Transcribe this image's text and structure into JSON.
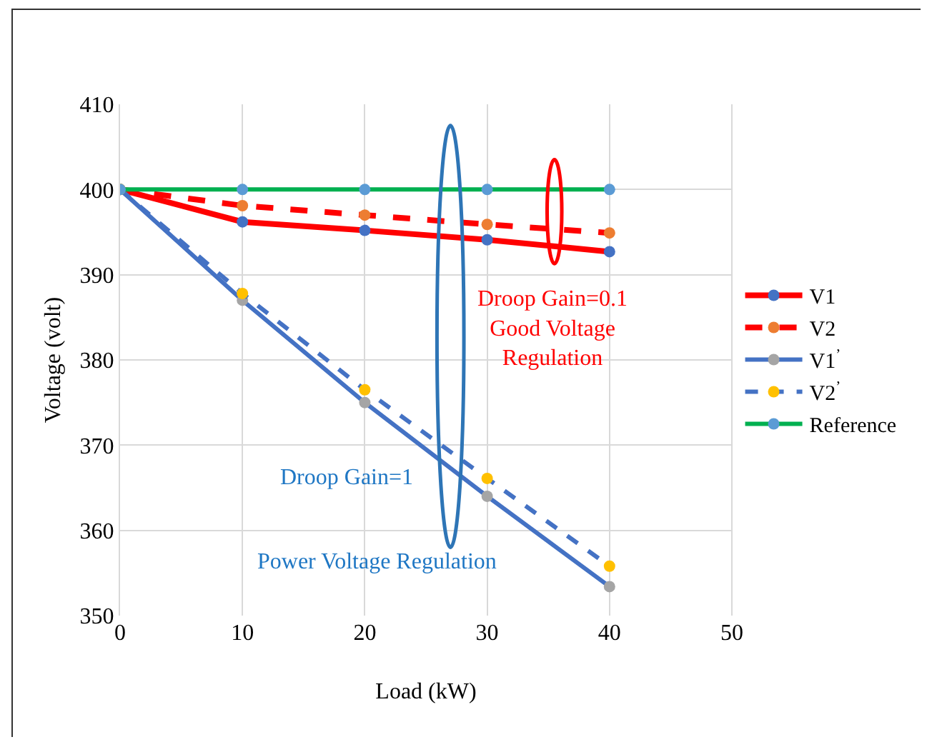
{
  "chart_data": {
    "type": "line",
    "xlabel": "Load (kW)",
    "ylabel": "Voltage (volt)",
    "x": [
      0,
      10,
      20,
      30,
      40
    ],
    "series": [
      {
        "name": "V1",
        "color": "#ff0000",
        "colors": [
          "#4472c4",
          "#4472c4",
          "#4472c4",
          "#4472c4",
          "#4472c4"
        ],
        "line_style": "solid",
        "values": [
          400,
          396.2,
          395.2,
          394.1,
          392.7
        ]
      },
      {
        "name": "V2",
        "color": "#ff0000",
        "colors": [
          "#ed7d31",
          "#ed7d31",
          "#ed7d31",
          "#ed7d31",
          "#ed7d31"
        ],
        "line_style": "dashed",
        "values": [
          400,
          398.1,
          397.0,
          395.9,
          394.9
        ]
      },
      {
        "name": "V1$^{’}$",
        "color": "#4472c4",
        "colors": [
          "#a5a5a5",
          "#a5a5a5",
          "#a5a5a5",
          "#a5a5a5",
          "#a5a5a5"
        ],
        "line_style": "solid",
        "values": [
          400,
          387.0,
          375.0,
          364.0,
          353.4
        ]
      },
      {
        "name": "V2$^{’}$",
        "color": "#4472c4",
        "colors": [
          "#ffc000",
          "#ffc000",
          "#ffc000",
          "#ffc000",
          "#ffc000"
        ],
        "line_style": "dashed",
        "values": [
          400,
          387.8,
          376.5,
          366.1,
          355.8
        ]
      },
      {
        "name": "Reference",
        "color": "#00b050",
        "colors": [
          "#5b9bd5",
          "#5b9bd5",
          "#5b9bd5",
          "#5b9bd5",
          "#5b9bd5"
        ],
        "line_style": "solid",
        "values": [
          400,
          400,
          400,
          400,
          400
        ]
      }
    ],
    "xlim": [
      0,
      50
    ],
    "xticks": [
      0,
      10,
      20,
      30,
      40,
      50
    ],
    "ylim": [
      350,
      410
    ],
    "yticks": [
      350,
      360,
      370,
      380,
      390,
      400,
      410
    ],
    "grid": true,
    "legend": "right",
    "marker": "circle",
    "annotations": [
      "Droop Gain=0.1\nGood Voltage\nRegulation",
      "Droop Gain=1",
      "Power Voltage Regulation"
    ]
  }
}
